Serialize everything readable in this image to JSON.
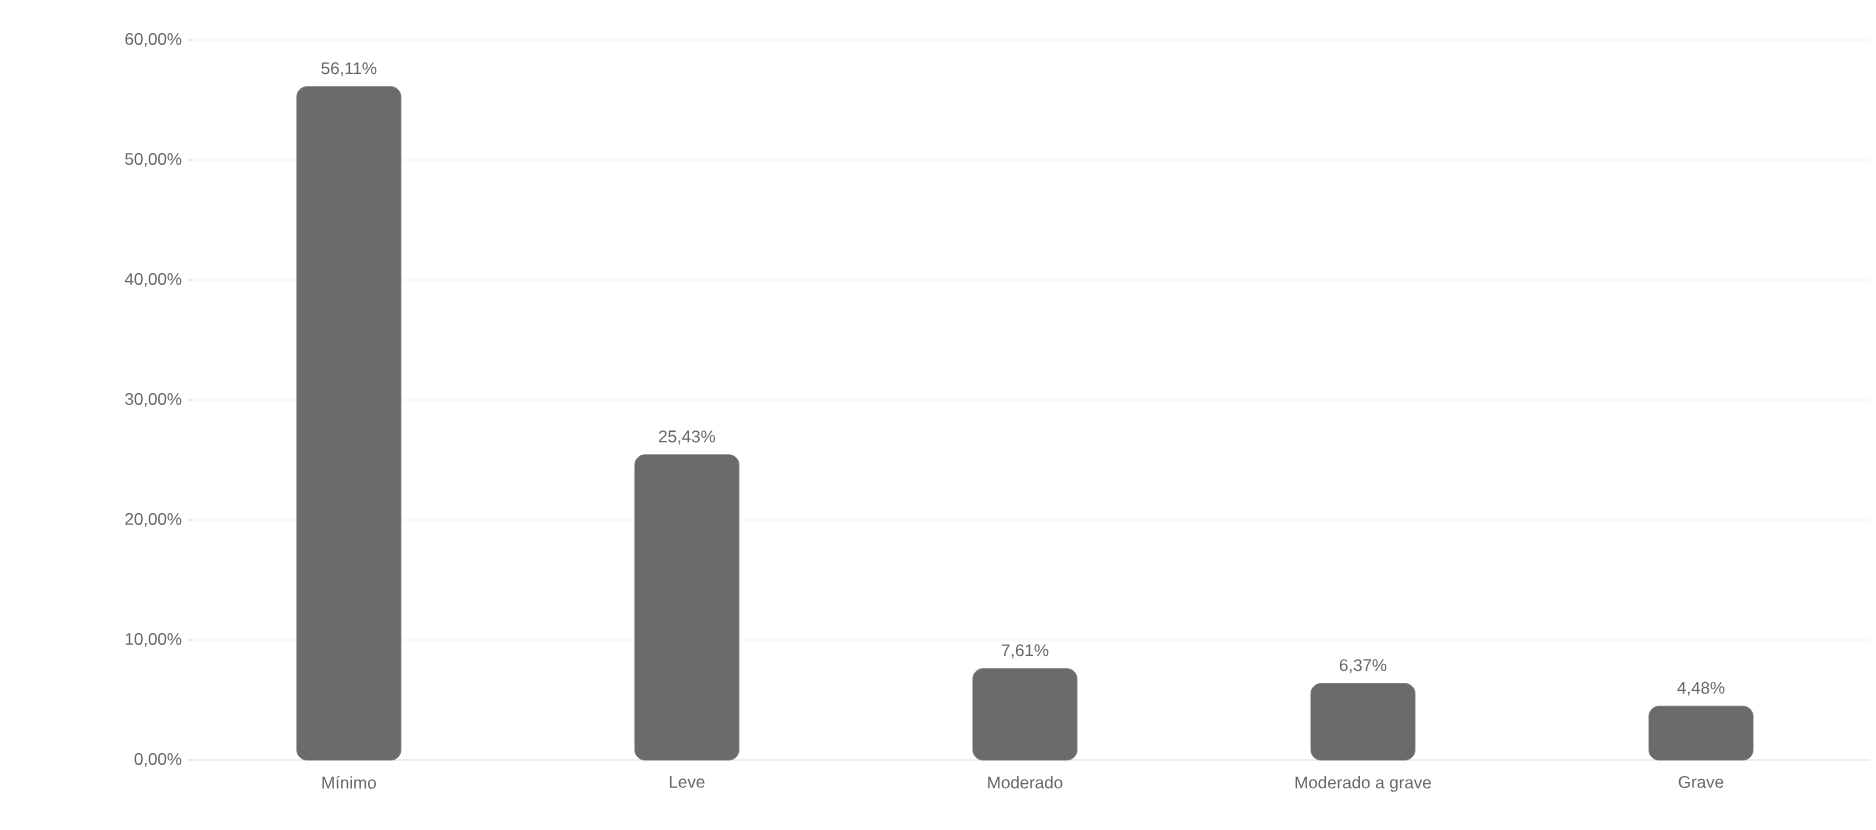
{
  "chart_data": {
    "type": "bar",
    "categories": [
      "Mínimo",
      "Leve",
      "Moderado",
      "Moderado a grave",
      "Grave"
    ],
    "values": [
      56.11,
      25.43,
      7.61,
      6.37,
      4.48
    ],
    "value_labels": [
      "56,11%",
      "25,43%",
      "7,61%",
      "6,37%",
      "4,48%"
    ],
    "color": "#6b6b6b",
    "ylim": [
      0,
      60
    ],
    "yticks": [
      {
        "value": 0,
        "label": "0,00%"
      },
      {
        "value": 10,
        "label": "10,00%"
      },
      {
        "value": 20,
        "label": "20,00%"
      },
      {
        "value": 30,
        "label": "30,00%"
      },
      {
        "value": 40,
        "label": "40,00%"
      },
      {
        "value": 50,
        "label": "50,00%"
      },
      {
        "value": 60,
        "label": "60,00%"
      }
    ],
    "grid": "y"
  }
}
